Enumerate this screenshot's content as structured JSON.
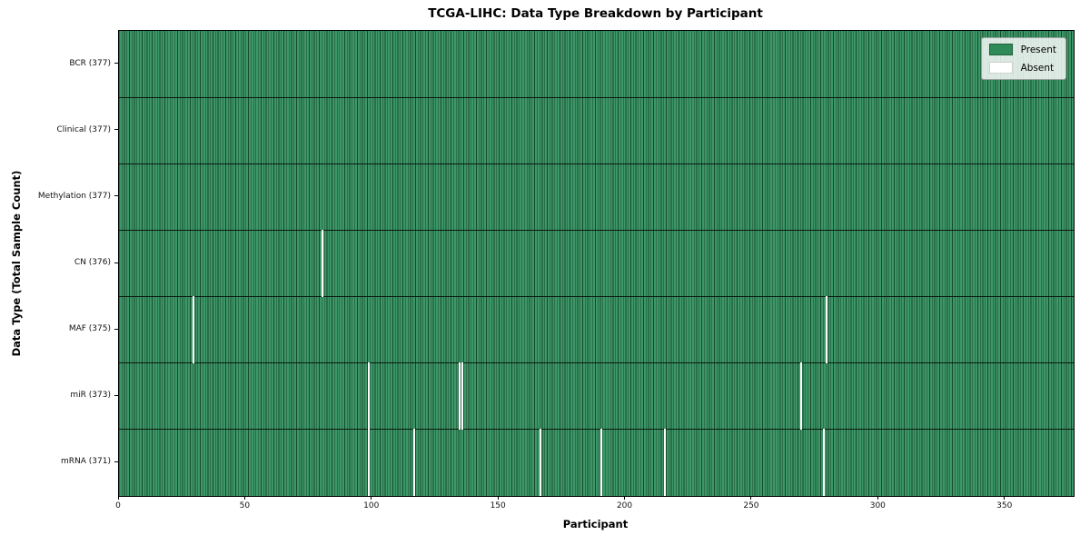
{
  "title": "TCGA-LIHC: Data Type Breakdown by Participant",
  "xlabel": "Participant",
  "ylabel": "Data Type (Total Sample Count)",
  "legend": {
    "present_label": "Present",
    "absent_label": "Absent"
  },
  "chart_data": {
    "type": "heatmap",
    "title": "TCGA-LIHC: Data Type Breakdown by Participant",
    "xlabel": "Participant",
    "ylabel": "Data Type (Total Sample Count)",
    "n_participants": 377,
    "x_range": [
      0,
      377
    ],
    "x_ticks": [
      0,
      50,
      100,
      150,
      200,
      250,
      300,
      350
    ],
    "legend_position": "upper right",
    "grid": "row-dividers and per-participant cell edges",
    "rows": [
      {
        "label": "BCR (377)",
        "data_type": "BCR",
        "present_count": 377,
        "absent_participants": []
      },
      {
        "label": "Clinical (377)",
        "data_type": "Clinical",
        "present_count": 377,
        "absent_participants": []
      },
      {
        "label": "Methylation (377)",
        "data_type": "Methylation",
        "present_count": 377,
        "absent_participants": []
      },
      {
        "label": "CN (376)",
        "data_type": "CN",
        "present_count": 376,
        "absent_participants": [
          80
        ]
      },
      {
        "label": "MAF (375)",
        "data_type": "MAF",
        "present_count": 375,
        "absent_participants": [
          29,
          279
        ]
      },
      {
        "label": "miR (373)",
        "data_type": "miR",
        "present_count": 373,
        "absent_participants": [
          98,
          134,
          135,
          269
        ]
      },
      {
        "label": "mRNA (371)",
        "data_type": "mRNA",
        "present_count": 371,
        "absent_participants": [
          98,
          116,
          166,
          190,
          215,
          278
        ]
      }
    ],
    "colors": {
      "present_fill": "#3d9768",
      "present_base": "#2e8b57",
      "cell_edge": "#17492d",
      "absent": "#ffffff",
      "row_divider": "#0a1a10",
      "axis": "#000000"
    }
  }
}
